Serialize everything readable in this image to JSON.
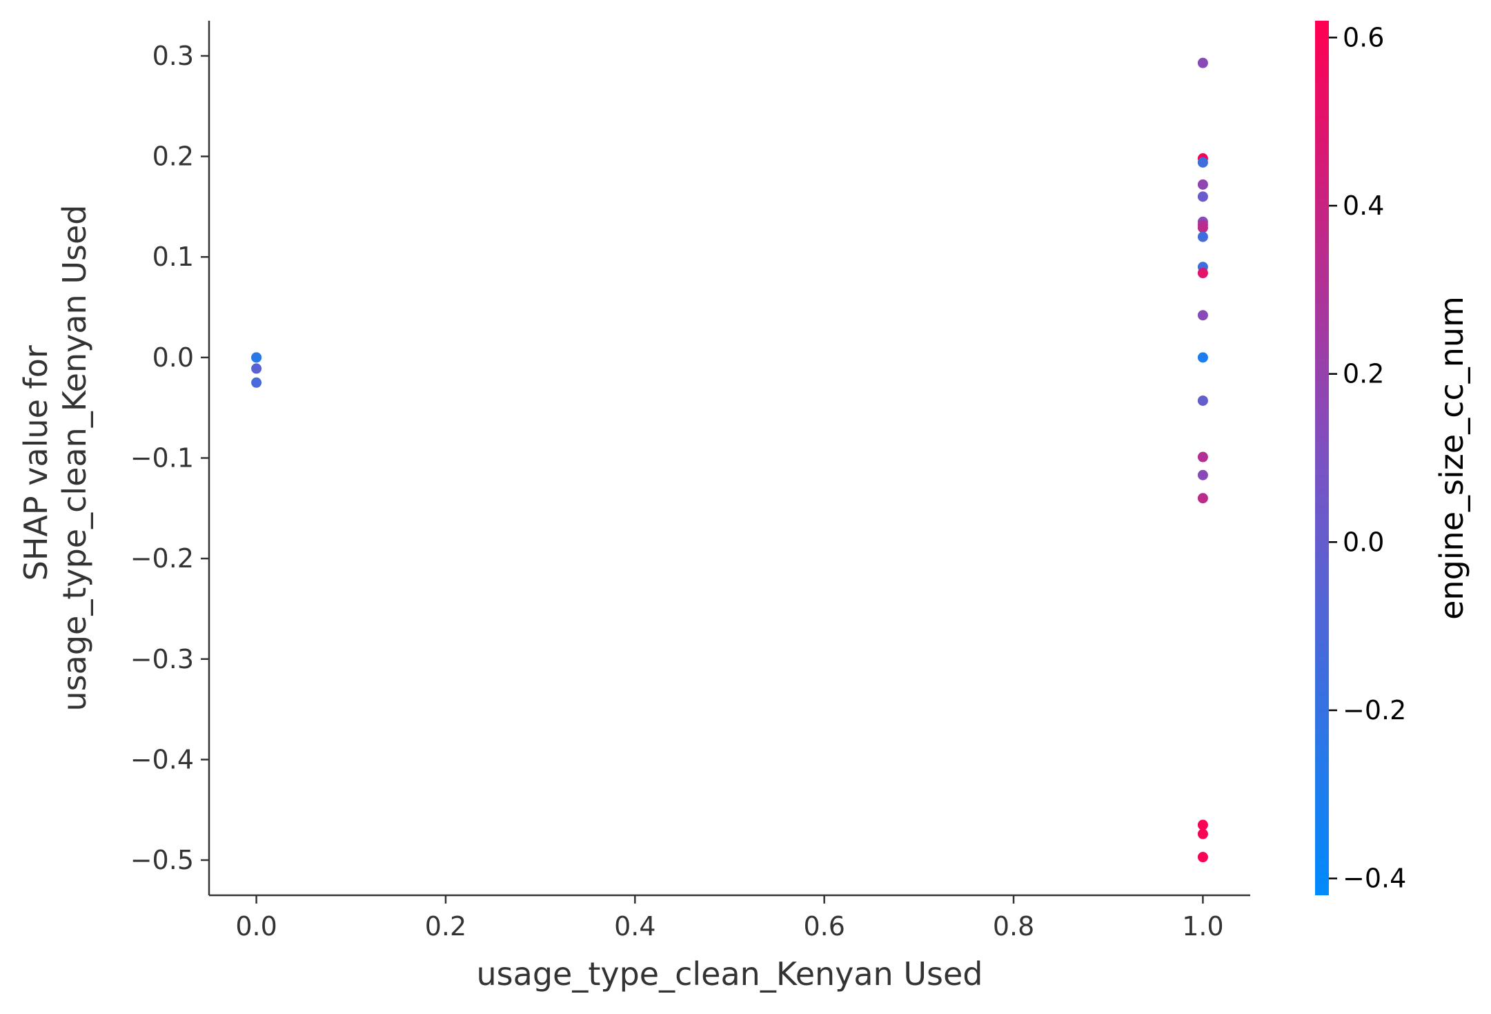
{
  "chart_data": {
    "type": "scatter",
    "title": "",
    "xlabel": "usage_type_clean_Kenyan Used",
    "ylabel_lines": [
      "SHAP value for",
      "usage_type_clean_Kenyan Used"
    ],
    "xlim": [
      -0.05,
      1.05
    ],
    "ylim": [
      -0.535,
      0.335
    ],
    "x_ticks": [
      0.0,
      0.2,
      0.4,
      0.6,
      0.8,
      1.0
    ],
    "x_tick_labels": [
      "0.0",
      "0.2",
      "0.4",
      "0.6",
      "0.8",
      "1.0"
    ],
    "y_ticks": [
      0.3,
      0.2,
      0.1,
      0.0,
      -0.1,
      -0.2,
      -0.3,
      -0.4,
      -0.5
    ],
    "y_tick_labels": [
      "0.3",
      "0.2",
      "0.1",
      "0.0",
      "−0.1",
      "−0.2",
      "−0.3",
      "−0.4",
      "−0.5"
    ],
    "grid": false,
    "colorbar": {
      "label": "engine_size_cc_num",
      "range": [
        -0.42,
        0.62
      ],
      "ticks": [
        0.6,
        0.4,
        0.2,
        0.0,
        -0.2,
        -0.4
      ],
      "tick_labels": [
        "0.6",
        "0.4",
        "0.2",
        "0.0",
        "−0.2",
        "−0.4"
      ],
      "color_low": "#008afb",
      "color_mid": "#7c52c2",
      "color_high": "#ff0052"
    },
    "points": [
      {
        "x": 0.0,
        "y": 0.0,
        "c": -0.3
      },
      {
        "x": 0.0,
        "y": 0.0,
        "c": -0.25
      },
      {
        "x": 0.0,
        "y": -0.011,
        "c": -0.05
      },
      {
        "x": 0.0,
        "y": -0.025,
        "c": -0.12
      },
      {
        "x": 1.0,
        "y": 0.293,
        "c": 0.15
      },
      {
        "x": 1.0,
        "y": 0.198,
        "c": 0.6
      },
      {
        "x": 1.0,
        "y": 0.194,
        "c": -0.15
      },
      {
        "x": 1.0,
        "y": 0.172,
        "c": 0.18
      },
      {
        "x": 1.0,
        "y": 0.16,
        "c": 0.02
      },
      {
        "x": 1.0,
        "y": 0.135,
        "c": 0.12
      },
      {
        "x": 1.0,
        "y": 0.132,
        "c": 0.3
      },
      {
        "x": 1.0,
        "y": 0.129,
        "c": 0.35
      },
      {
        "x": 1.0,
        "y": 0.12,
        "c": -0.15
      },
      {
        "x": 1.0,
        "y": 0.09,
        "c": -0.15
      },
      {
        "x": 1.0,
        "y": 0.084,
        "c": 0.5
      },
      {
        "x": 1.0,
        "y": 0.042,
        "c": 0.15
      },
      {
        "x": 1.0,
        "y": 0.0,
        "c": -0.3
      },
      {
        "x": 1.0,
        "y": -0.043,
        "c": 0.0
      },
      {
        "x": 1.0,
        "y": -0.099,
        "c": 0.32
      },
      {
        "x": 1.0,
        "y": -0.117,
        "c": 0.15
      },
      {
        "x": 1.0,
        "y": -0.14,
        "c": 0.35
      },
      {
        "x": 1.0,
        "y": -0.465,
        "c": 0.6
      },
      {
        "x": 1.0,
        "y": -0.474,
        "c": 0.6
      },
      {
        "x": 1.0,
        "y": -0.497,
        "c": 0.6
      }
    ]
  }
}
